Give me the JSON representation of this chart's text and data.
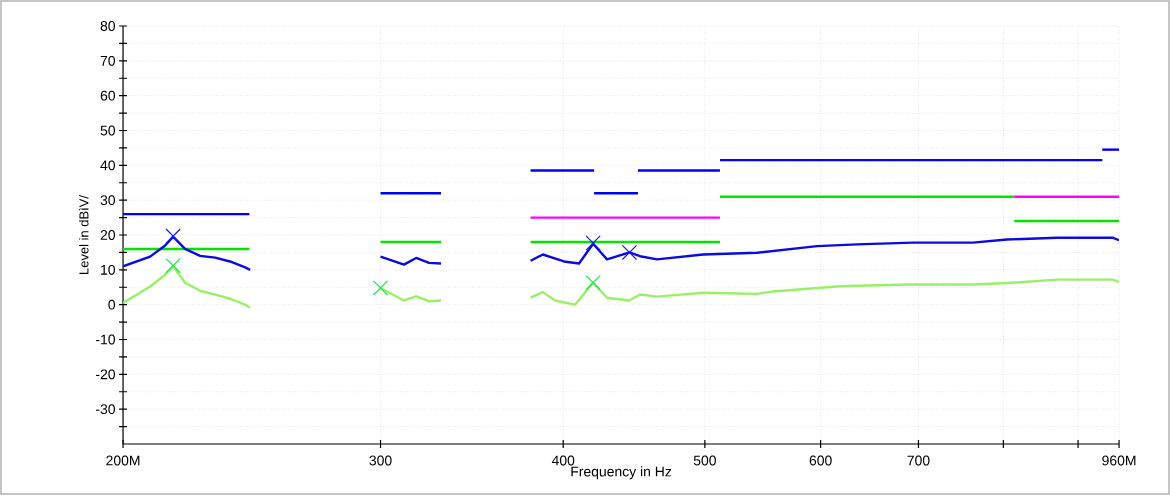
{
  "chart_data": {
    "type": "line",
    "xlabel": "Frequency in Hz",
    "ylabel": "Level in dBìV/",
    "log": "x",
    "grid": true,
    "xlim": [
      200,
      960
    ],
    "ylim": [
      -40,
      80
    ],
    "xticks": [
      {
        "value": 200,
        "label": "200M"
      },
      300,
      400,
      500,
      600,
      700,
      {
        "value": 800,
        "label": null
      },
      {
        "value": 900,
        "label": null
      },
      {
        "value": 960,
        "label": "960M"
      }
    ],
    "yticks": [
      {
        "value": -35,
        "label": null
      },
      -30,
      {
        "value": -25,
        "label": null
      },
      -20,
      {
        "value": -15,
        "label": null
      },
      -10,
      {
        "value": -5,
        "label": null
      },
      0,
      {
        "value": 5,
        "label": null
      },
      10,
      {
        "value": 15,
        "label": null
      },
      20,
      {
        "value": 25,
        "label": null
      },
      30,
      {
        "value": 35,
        "label": null
      },
      40,
      {
        "value": 45,
        "label": null
      },
      50,
      {
        "value": 55,
        "label": null
      },
      60,
      {
        "value": 65,
        "label": null
      },
      70,
      {
        "value": 75,
        "label": null
      },
      80
    ],
    "series": [
      {
        "color": "#0000ff",
        "x": [
          200,
          244
        ],
        "values": [
          26,
          26
        ]
      },
      {
        "color": "#0000ff",
        "x": [
          300,
          330
        ],
        "values": [
          32,
          32
        ]
      },
      {
        "color": "#0000ff",
        "x": [
          380,
          420
        ],
        "values": [
          38.5,
          38.5
        ]
      },
      {
        "color": "#0000ff",
        "x": [
          420,
          450
        ],
        "values": [
          32,
          32
        ]
      },
      {
        "color": "#0000ff",
        "x": [
          450,
          512
        ],
        "values": [
          38.5,
          38.5
        ]
      },
      {
        "color": "#0000ff",
        "x": [
          512,
          935
        ],
        "values": [
          41.5,
          41.5
        ]
      },
      {
        "color": "#0000ff",
        "x": [
          935,
          960
        ],
        "values": [
          44.5,
          44.5
        ]
      },
      {
        "color": "#00e600",
        "x": [
          200,
          244
        ],
        "values": [
          16,
          16
        ]
      },
      {
        "color": "#00e600",
        "x": [
          300,
          330
        ],
        "values": [
          18,
          18
        ]
      },
      {
        "color": "#00e600",
        "x": [
          380,
          512
        ],
        "values": [
          18,
          18
        ]
      },
      {
        "color": "#00e600",
        "x": [
          512,
          814
        ],
        "values": [
          31,
          31
        ]
      },
      {
        "color": "#00e600",
        "x": [
          814,
          960
        ],
        "values": [
          24,
          24
        ]
      },
      {
        "color": "#ff00ff",
        "x": [
          380,
          512
        ],
        "values": [
          25,
          25
        ]
      },
      {
        "color": "#ff00ff",
        "x": [
          814,
          960
        ],
        "values": [
          31,
          31
        ]
      },
      {
        "color": "#0a0ae6",
        "x": [
          200,
          208.7,
          213.7,
          216.4,
          220.5,
          225.8,
          231.2,
          236.7,
          242.4,
          244.3
        ],
        "values": [
          11,
          13.8,
          17,
          19.5,
          16,
          14,
          13.5,
          12.4,
          10.7,
          10
        ]
      },
      {
        "color": "#0a0ae6",
        "x": [
          300,
          311.3,
          317.3,
          323.8,
          330
        ],
        "values": [
          13.8,
          11.5,
          13.4,
          12,
          11.8
        ]
      },
      {
        "color": "#0a0ae6",
        "x": [
          380,
          387.5,
          400.5,
          410.1,
          419.3,
          428.6,
          444,
          451.5,
          463.7,
          498.6,
          542.8,
          596.6,
          635.4,
          694,
          762.8,
          804.7,
          870.7,
          951,
          960
        ],
        "values": [
          12.6,
          14.4,
          12.4,
          11.8,
          17.5,
          13,
          15,
          13.9,
          13,
          14.4,
          14.9,
          16.8,
          17.3,
          17.8,
          17.8,
          18.7,
          19.2,
          19.2,
          18.5
        ]
      },
      {
        "color": "#99f066",
        "x": [
          200,
          208.7,
          213.7,
          216.4,
          220.5,
          225.8,
          231.2,
          236.7,
          242.4,
          244.3
        ],
        "values": [
          0.5,
          5.2,
          8.6,
          11,
          6.3,
          4,
          2.9,
          1.7,
          0,
          -0.9
        ]
      },
      {
        "color": "#99f066",
        "x": [
          300,
          311.3,
          317.3,
          323.8,
          330
        ],
        "values": [
          4.8,
          1.2,
          2.4,
          1,
          1.2
        ]
      },
      {
        "color": "#99f066",
        "x": [
          380,
          387.5,
          394.9,
          407.5,
          419.3,
          428.6,
          443.7,
          451.5,
          463.7,
          498.6,
          542.8,
          556.7,
          618.6,
          687.5,
          762.8,
          804.7,
          870.7,
          951,
          960
        ],
        "values": [
          2,
          3.6,
          1.2,
          0,
          6.3,
          2,
          1.2,
          2.9,
          2.3,
          3.4,
          3.1,
          3.8,
          5.3,
          5.8,
          5.8,
          6.2,
          7.2,
          7.2,
          6.5
        ]
      },
      {
        "type": "scatter",
        "marker": "cross",
        "color": "#1a1ae6",
        "x": [
          216.4,
          419.3,
          444
        ],
        "values": [
          19.7,
          17.7,
          15
        ]
      },
      {
        "type": "scatter",
        "marker": "cross",
        "color": "#1ee650",
        "x": [
          216.4,
          300,
          419.3
        ],
        "values": [
          11.2,
          4.8,
          6.3
        ]
      }
    ]
  }
}
